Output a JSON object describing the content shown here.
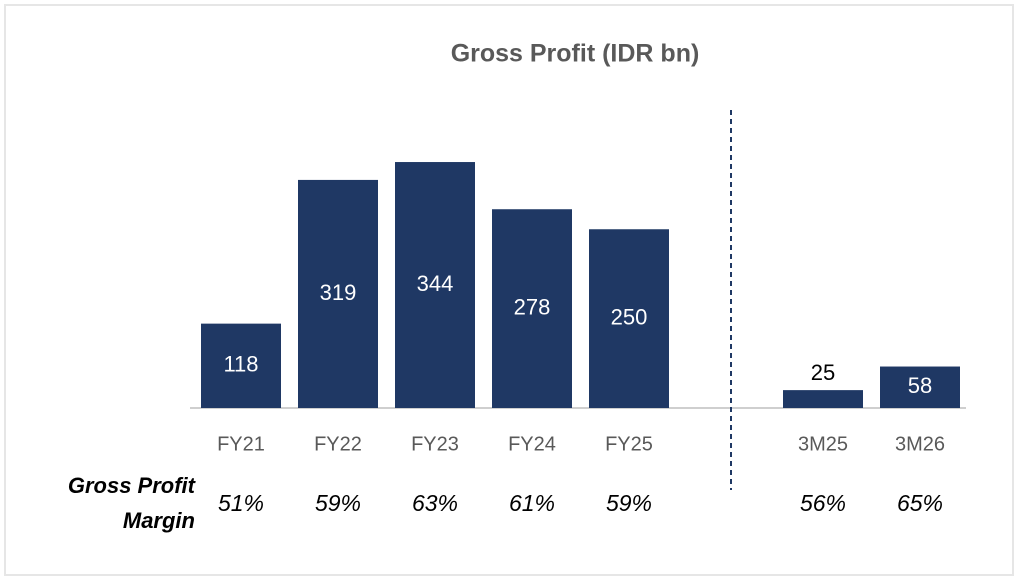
{
  "chart_data": {
    "type": "bar",
    "title": "Gross Profit (IDR bn)",
    "categories": [
      "FY21",
      "FY22",
      "FY23",
      "FY24",
      "FY25",
      null,
      "3M25",
      "3M26"
    ],
    "values": [
      118,
      319,
      344,
      278,
      250,
      null,
      25,
      58
    ],
    "color": "#1f3864",
    "margin": {
      "label": [
        "Gross Profit",
        "Margin"
      ],
      "values": [
        51,
        59,
        63,
        61,
        59,
        null,
        56,
        65
      ],
      "value_labels": [
        "51%",
        "59%",
        "63%",
        "61%",
        "59%",
        null,
        "56%",
        "65%"
      ]
    }
  }
}
